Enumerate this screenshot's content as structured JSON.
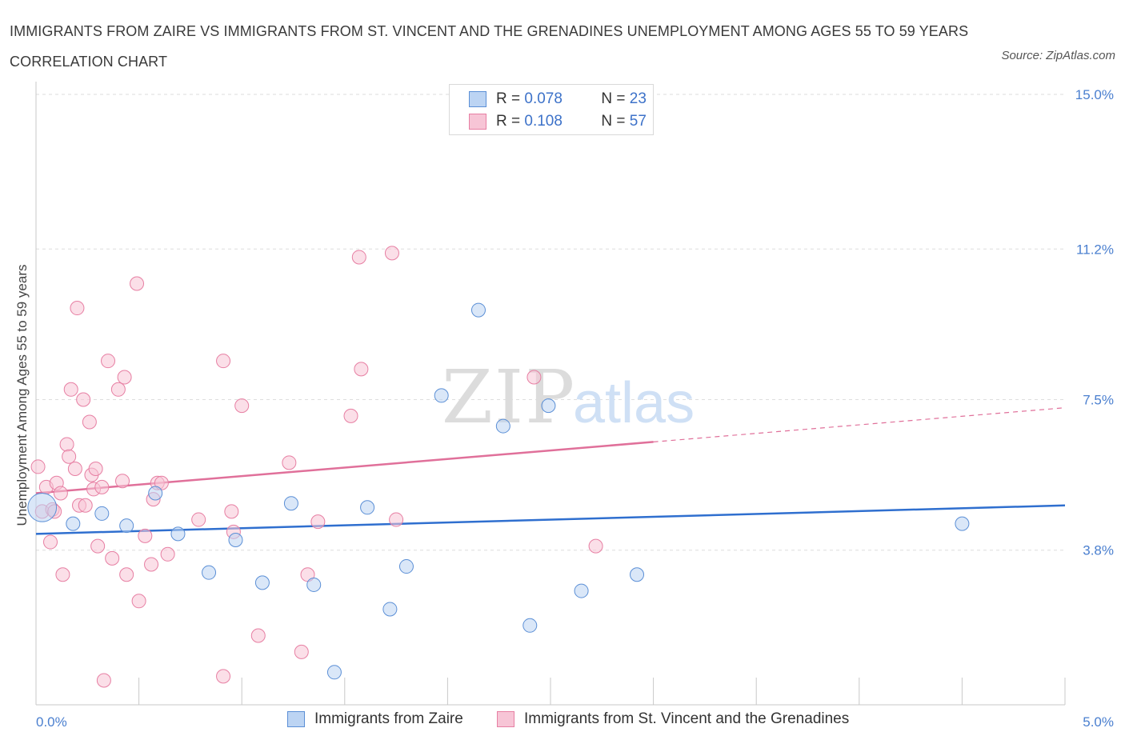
{
  "title": "IMMIGRANTS FROM ZAIRE VS IMMIGRANTS FROM ST. VINCENT AND THE GRENADINES UNEMPLOYMENT AMONG AGES 55 TO 59 YEARS CORRELATION CHART",
  "source": "Source: ZipAtlas.com",
  "watermark": {
    "zip": "ZIP",
    "atlas": "atlas"
  },
  "legend": {
    "rows": [
      {
        "r_label": "R =",
        "r_value": "0.078",
        "n_label": "N =",
        "n_value": "23"
      },
      {
        "r_label": "R =",
        "r_value": "0.108",
        "n_label": "N =",
        "n_value": "57"
      }
    ]
  },
  "chart_data": {
    "type": "scatter",
    "ylabel": "Unemployment Among Ages 55 to 59 years",
    "xlim": [
      0,
      5
    ],
    "ylim": [
      0,
      15
    ],
    "x_ticks": [
      "0.0%",
      "5.0%"
    ],
    "y_ticks": [
      {
        "value": 15.0,
        "label": "15.0%"
      },
      {
        "value": 11.2,
        "label": "11.2%"
      },
      {
        "value": 7.5,
        "label": "7.5%"
      },
      {
        "value": 3.8,
        "label": "3.8%"
      }
    ],
    "series": [
      {
        "name": "Immigrants from Zaire",
        "color": "#5b8fd6",
        "fill": "#bcd4f3",
        "trend": {
          "x0": 0.0,
          "y0": 4.2,
          "x1": 5.0,
          "y1": 4.9,
          "solid_to": 5.0
        },
        "points": [
          [
            0.03,
            4.85,
            1.0
          ],
          [
            0.18,
            4.45,
            0.5
          ],
          [
            0.32,
            4.7,
            0.5
          ],
          [
            0.44,
            4.4,
            0.5
          ],
          [
            0.58,
            5.2,
            0.5
          ],
          [
            0.69,
            4.2,
            0.5
          ],
          [
            0.84,
            3.25,
            0.5
          ],
          [
            0.97,
            4.05,
            0.5
          ],
          [
            1.1,
            3.0,
            0.5
          ],
          [
            1.24,
            4.95,
            0.5
          ],
          [
            1.35,
            2.95,
            0.5
          ],
          [
            1.45,
            0.8,
            0.5
          ],
          [
            1.61,
            4.85,
            0.5
          ],
          [
            1.72,
            2.35,
            0.5
          ],
          [
            1.8,
            3.4,
            0.5
          ],
          [
            1.97,
            7.6,
            0.5
          ],
          [
            2.15,
            9.7,
            0.5
          ],
          [
            2.27,
            6.85,
            0.5
          ],
          [
            2.4,
            1.95,
            0.5
          ],
          [
            2.49,
            7.35,
            0.5
          ],
          [
            2.65,
            2.8,
            0.5
          ],
          [
            2.92,
            3.2,
            0.5
          ],
          [
            4.5,
            4.45,
            0.5
          ]
        ]
      },
      {
        "name": "Immigrants from St. Vincent and the Grenadines",
        "color": "#e77fa3",
        "fill": "#f7c5d6",
        "trend": {
          "x0": 0.0,
          "y0": 5.2,
          "x1": 5.0,
          "y1": 7.3,
          "solid_to": 3.0
        },
        "points": [
          [
            0.01,
            5.85,
            0.5
          ],
          [
            0.03,
            4.75,
            0.5
          ],
          [
            0.05,
            5.35,
            0.5
          ],
          [
            0.07,
            4.0,
            0.5
          ],
          [
            0.08,
            4.8,
            0.5
          ],
          [
            0.09,
            4.75,
            0.5
          ],
          [
            0.1,
            5.45,
            0.5
          ],
          [
            0.12,
            5.2,
            0.5
          ],
          [
            0.13,
            3.2,
            0.5
          ],
          [
            0.15,
            6.4,
            0.5
          ],
          [
            0.16,
            6.1,
            0.5
          ],
          [
            0.17,
            7.75,
            0.5
          ],
          [
            0.19,
            5.8,
            0.5
          ],
          [
            0.2,
            9.75,
            0.5
          ],
          [
            0.21,
            4.9,
            0.5
          ],
          [
            0.23,
            7.5,
            0.5
          ],
          [
            0.24,
            4.9,
            0.5
          ],
          [
            0.26,
            6.95,
            0.5
          ],
          [
            0.27,
            5.65,
            0.5
          ],
          [
            0.28,
            5.3,
            0.5
          ],
          [
            0.29,
            5.8,
            0.5
          ],
          [
            0.3,
            3.9,
            0.5
          ],
          [
            0.32,
            5.35,
            0.5
          ],
          [
            0.33,
            0.6,
            0.5
          ],
          [
            0.35,
            8.45,
            0.5
          ],
          [
            0.37,
            3.6,
            0.5
          ],
          [
            0.4,
            7.75,
            0.5
          ],
          [
            0.42,
            5.5,
            0.5
          ],
          [
            0.43,
            8.05,
            0.5
          ],
          [
            0.44,
            3.2,
            0.5
          ],
          [
            0.49,
            10.35,
            0.5
          ],
          [
            0.5,
            2.55,
            0.5
          ],
          [
            0.53,
            4.15,
            0.5
          ],
          [
            0.56,
            3.45,
            0.5
          ],
          [
            0.57,
            5.05,
            0.5
          ],
          [
            0.59,
            5.45,
            0.5
          ],
          [
            0.61,
            5.45,
            0.5
          ],
          [
            0.64,
            3.7,
            0.5
          ],
          [
            0.79,
            4.55,
            0.5
          ],
          [
            0.91,
            0.7,
            0.5
          ],
          [
            0.91,
            8.45,
            0.5
          ],
          [
            0.95,
            4.75,
            0.5
          ],
          [
            0.96,
            4.25,
            0.5
          ],
          [
            1.0,
            7.35,
            0.5
          ],
          [
            1.08,
            1.7,
            0.5
          ],
          [
            1.23,
            5.95,
            0.5
          ],
          [
            1.29,
            1.3,
            0.5
          ],
          [
            1.32,
            3.2,
            0.5
          ],
          [
            1.37,
            4.5,
            0.5
          ],
          [
            1.53,
            7.1,
            0.5
          ],
          [
            1.57,
            11.0,
            0.5
          ],
          [
            1.58,
            8.25,
            0.5
          ],
          [
            1.73,
            11.1,
            0.5
          ],
          [
            1.75,
            4.55,
            0.5
          ],
          [
            2.42,
            8.05,
            0.5
          ],
          [
            2.72,
            3.9,
            0.5
          ],
          [
            2.58,
            0.0,
            0.0
          ]
        ]
      }
    ]
  }
}
